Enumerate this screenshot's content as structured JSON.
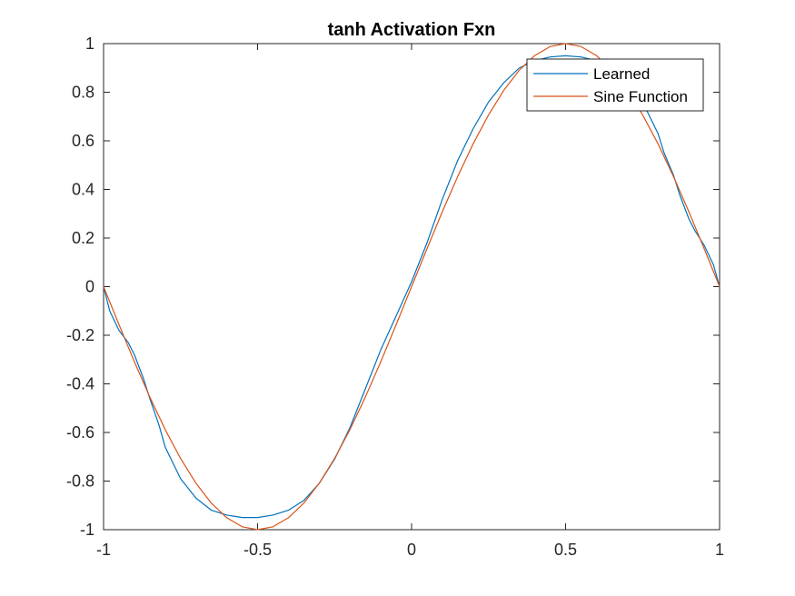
{
  "chart_data": {
    "type": "line",
    "title": "tanh Activation Fxn",
    "xlabel": "",
    "ylabel": "",
    "xlim": [
      -1,
      1
    ],
    "ylim": [
      -1,
      1
    ],
    "xticks": [
      -1,
      -0.5,
      0,
      0.5,
      1
    ],
    "xtick_labels": [
      "-1",
      "-0.5",
      "0",
      "0.5",
      "1"
    ],
    "yticks": [
      -1,
      -0.8,
      -0.6,
      -0.4,
      -0.2,
      0,
      0.2,
      0.4,
      0.6,
      0.8,
      1
    ],
    "ytick_labels": [
      "-1",
      "-0.8",
      "-0.6",
      "-0.4",
      "-0.2",
      "0",
      "0.2",
      "0.4",
      "0.6",
      "0.8",
      "1"
    ],
    "grid": false,
    "legend_position": "top-right",
    "series": [
      {
        "name": "Learned",
        "color": "#0072BD",
        "x": [
          -1,
          -0.98,
          -0.95,
          -0.92,
          -0.9,
          -0.87,
          -0.85,
          -0.82,
          -0.8,
          -0.75,
          -0.7,
          -0.65,
          -0.6,
          -0.55,
          -0.5,
          -0.45,
          -0.4,
          -0.35,
          -0.3,
          -0.25,
          -0.2,
          -0.15,
          -0.1,
          -0.05,
          0,
          0.05,
          0.1,
          0.15,
          0.2,
          0.25,
          0.3,
          0.35,
          0.4,
          0.45,
          0.5,
          0.55,
          0.6,
          0.65,
          0.7,
          0.75,
          0.8,
          0.82,
          0.85,
          0.87,
          0.9,
          0.92,
          0.95,
          0.98,
          1
        ],
        "y": [
          0,
          -0.1,
          -0.18,
          -0.23,
          -0.28,
          -0.38,
          -0.46,
          -0.57,
          -0.66,
          -0.79,
          -0.87,
          -0.92,
          -0.94,
          -0.95,
          -0.95,
          -0.94,
          -0.92,
          -0.88,
          -0.81,
          -0.71,
          -0.58,
          -0.42,
          -0.26,
          -0.12,
          0.02,
          0.18,
          0.36,
          0.52,
          0.65,
          0.76,
          0.84,
          0.9,
          0.93,
          0.945,
          0.95,
          0.945,
          0.93,
          0.91,
          0.86,
          0.76,
          0.63,
          0.55,
          0.46,
          0.38,
          0.28,
          0.23,
          0.17,
          0.09,
          0.0
        ]
      },
      {
        "name": "Sine Function",
        "color": "#D95319",
        "x": [
          -1,
          -0.95,
          -0.9,
          -0.85,
          -0.8,
          -0.75,
          -0.7,
          -0.65,
          -0.6,
          -0.55,
          -0.5,
          -0.45,
          -0.4,
          -0.35,
          -0.3,
          -0.25,
          -0.2,
          -0.15,
          -0.1,
          -0.05,
          0,
          0.05,
          0.1,
          0.15,
          0.2,
          0.25,
          0.3,
          0.35,
          0.4,
          0.45,
          0.5,
          0.55,
          0.6,
          0.65,
          0.7,
          0.75,
          0.8,
          0.85,
          0.9,
          0.95,
          1
        ],
        "y": [
          0,
          -0.156,
          -0.309,
          -0.454,
          -0.588,
          -0.707,
          -0.809,
          -0.891,
          -0.951,
          -0.988,
          -1.0,
          -0.988,
          -0.951,
          -0.891,
          -0.809,
          -0.707,
          -0.588,
          -0.454,
          -0.309,
          -0.156,
          0,
          0.156,
          0.309,
          0.454,
          0.588,
          0.707,
          0.809,
          0.891,
          0.951,
          0.988,
          1.0,
          0.988,
          0.951,
          0.891,
          0.809,
          0.707,
          0.588,
          0.454,
          0.309,
          0.156,
          0
        ]
      }
    ]
  }
}
